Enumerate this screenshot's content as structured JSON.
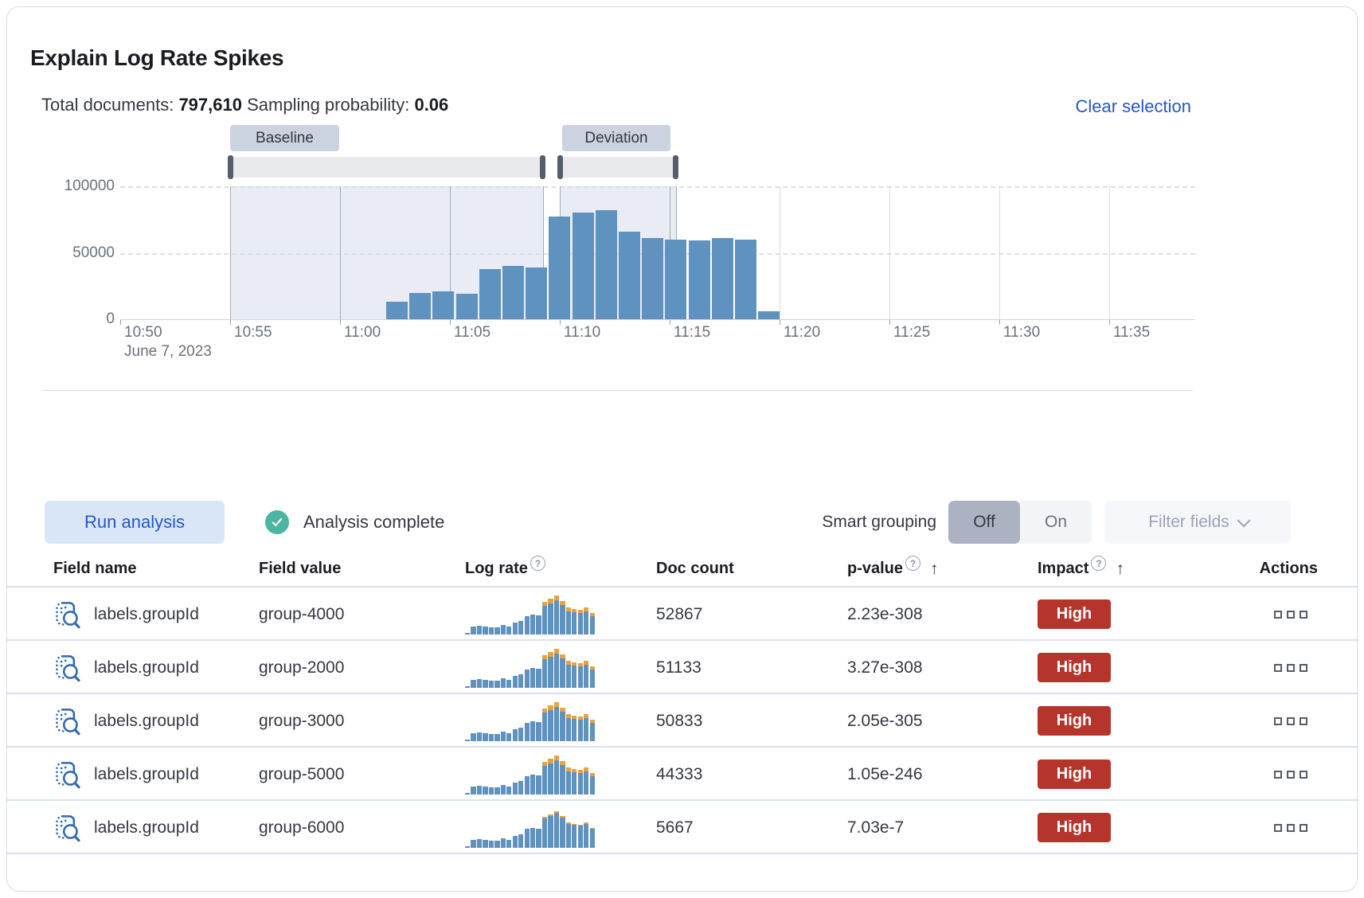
{
  "panel": {
    "title": "Explain Log Rate Spikes"
  },
  "summary": {
    "total_documents_label": "Total documents:",
    "total_documents_value": "797,610",
    "sampling_probability_label": "Sampling probability:",
    "sampling_probability_value": "0.06",
    "clear_selection_label": "Clear selection"
  },
  "chart_data": {
    "type": "bar",
    "title": "Document count histogram with baseline and deviation time range selections",
    "y_axis": {
      "tick_labels": [
        "0",
        "50000",
        "100000"
      ],
      "max": 100000
    },
    "x_axis": {
      "tick_labels": [
        "10:50",
        "10:55",
        "11:00",
        "11:05",
        "11:10",
        "11:15",
        "11:20",
        "11:25",
        "11:30",
        "11:35"
      ],
      "start_date_label": "June 7, 2023",
      "interval_minutes": 5
    },
    "bar_values": [
      13000,
      20000,
      21000,
      19000,
      38000,
      40000,
      39000,
      77000,
      80000,
      82000,
      66000,
      61000,
      60000,
      59000,
      61000,
      60000,
      6000
    ],
    "baseline": {
      "label": "Baseline",
      "from": "10:55",
      "to": "11:09"
    },
    "deviation": {
      "label": "Deviation",
      "from": "11:10",
      "to": "11:15"
    },
    "legend_position": "none",
    "grid": true,
    "colors": {
      "bar": "#6092C0",
      "selection_fill": "#E9ECF4"
    }
  },
  "controls": {
    "run_analysis_label": "Run analysis",
    "status_text": "Analysis complete",
    "smart_grouping_label": "Smart grouping",
    "off_label": "Off",
    "on_label": "On",
    "smart_grouping_state": "Off",
    "filter_fields_label": "Filter fields"
  },
  "table": {
    "columns": [
      {
        "label": "Field name"
      },
      {
        "label": "Field value"
      },
      {
        "label": "Log rate",
        "help_icon": true
      },
      {
        "label": "Doc count"
      },
      {
        "label": "p-value",
        "help_icon": true,
        "sort": "asc"
      },
      {
        "label": "Impact",
        "help_icon": true,
        "sort": "asc"
      },
      {
        "label": "Actions"
      }
    ],
    "rows": [
      {
        "field_name": "labels.groupId",
        "field_value": "group-4000",
        "doc_count": "52867",
        "p_value": "2.23e-308",
        "impact": "High",
        "log_rate_chart": {
          "blue": [
            3,
            20,
            22,
            19,
            18,
            17,
            24,
            20,
            29,
            33,
            45,
            48,
            46,
            70,
            75,
            83,
            72,
            56,
            53,
            52,
            56,
            44
          ],
          "orange": [
            0,
            0,
            0,
            0,
            0,
            0,
            0,
            0,
            0,
            0,
            0,
            0,
            0,
            10,
            11,
            12,
            10,
            9,
            8,
            8,
            9,
            8
          ]
        }
      },
      {
        "field_name": "labels.groupId",
        "field_value": "group-2000",
        "doc_count": "51133",
        "p_value": "3.27e-308",
        "impact": "High",
        "log_rate_chart": {
          "blue": [
            3,
            20,
            22,
            19,
            18,
            17,
            24,
            20,
            29,
            33,
            45,
            48,
            46,
            70,
            75,
            83,
            72,
            56,
            53,
            52,
            56,
            44
          ],
          "orange": [
            0,
            0,
            0,
            0,
            0,
            0,
            0,
            0,
            0,
            0,
            0,
            0,
            0,
            10,
            11,
            12,
            10,
            9,
            8,
            8,
            9,
            8
          ]
        }
      },
      {
        "field_name": "labels.groupId",
        "field_value": "group-3000",
        "doc_count": "50833",
        "p_value": "2.05e-305",
        "impact": "High",
        "log_rate_chart": {
          "blue": [
            3,
            20,
            22,
            19,
            18,
            17,
            24,
            20,
            29,
            33,
            45,
            48,
            46,
            70,
            75,
            83,
            72,
            56,
            53,
            52,
            56,
            44
          ],
          "orange": [
            0,
            0,
            0,
            0,
            0,
            0,
            0,
            0,
            0,
            0,
            0,
            0,
            0,
            10,
            11,
            12,
            10,
            9,
            8,
            8,
            9,
            8
          ]
        }
      },
      {
        "field_name": "labels.groupId",
        "field_value": "group-5000",
        "doc_count": "44333",
        "p_value": "1.05e-246",
        "impact": "High",
        "log_rate_chart": {
          "blue": [
            3,
            20,
            22,
            19,
            18,
            17,
            24,
            20,
            29,
            33,
            45,
            48,
            46,
            70,
            75,
            83,
            72,
            56,
            53,
            52,
            56,
            44
          ],
          "orange": [
            0,
            0,
            0,
            0,
            0,
            0,
            0,
            0,
            0,
            0,
            0,
            0,
            0,
            10,
            11,
            12,
            10,
            9,
            8,
            8,
            9,
            8
          ]
        }
      },
      {
        "field_name": "labels.groupId",
        "field_value": "group-6000",
        "doc_count": "5667",
        "p_value": "7.03e-7",
        "impact": "High",
        "log_rate_chart": {
          "blue": [
            3,
            20,
            22,
            19,
            18,
            17,
            24,
            20,
            29,
            33,
            46,
            49,
            47,
            72,
            77,
            85,
            74,
            58,
            55,
            54,
            58,
            46
          ],
          "orange": [
            0,
            0,
            0,
            0,
            0,
            0,
            0,
            0,
            0,
            0,
            0,
            0,
            0,
            3,
            4,
            4,
            3,
            3,
            2,
            2,
            3,
            2
          ]
        }
      }
    ]
  }
}
